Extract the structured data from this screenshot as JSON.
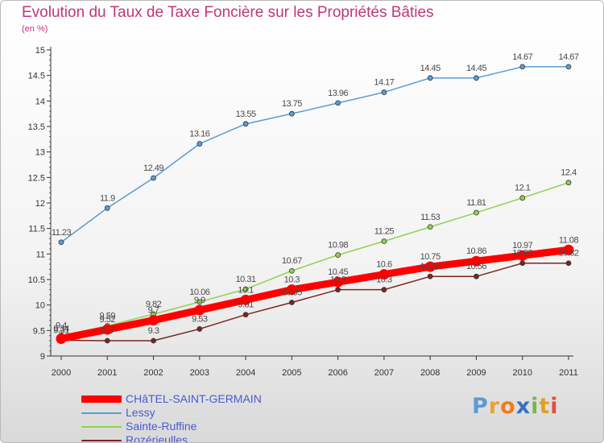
{
  "title": "Evolution du Taux de Taxe Foncière sur les Propriétés Bâties",
  "unit_label": "(en %)",
  "logo": {
    "text": "Proxiti",
    "colors": [
      "#5b9bd5",
      "#f0a030",
      "#f07c1e",
      "#3b6fc4",
      "#7ab648",
      "#e0a020",
      "#e0503a"
    ]
  },
  "chart_data": {
    "type": "line",
    "title": "Evolution du Taux de Taxe Foncière sur les Propriétés Bâties",
    "ylabel": "(en %)",
    "xlabel": "",
    "ylim": [
      9,
      15
    ],
    "yticks": [
      "9",
      "9.5",
      "10",
      "10.5",
      "11",
      "11.5",
      "12",
      "12.5",
      "13",
      "13.5",
      "14",
      "14.5",
      "15"
    ],
    "x": [
      "2000",
      "2001",
      "2002",
      "2003",
      "2004",
      "2005",
      "2006",
      "2007",
      "2008",
      "2009",
      "2010",
      "2011"
    ],
    "grid": false,
    "legend_position": "bottom-left",
    "series": [
      {
        "name": "CHâTEL-SAINT-GERMAIN",
        "color": "#ff0000",
        "values": [
          9.34,
          9.52,
          9.7,
          9.9,
          10.1,
          10.3,
          10.45,
          10.6,
          10.75,
          10.86,
          10.97,
          11.08
        ],
        "labels": [
          "9.34",
          "9.52",
          "9.7",
          "9.9",
          "10.1",
          "10.3",
          "10.45",
          "10.6",
          "10.75",
          "10.86",
          "10.97",
          "11.08"
        ]
      },
      {
        "name": "Lessy",
        "color": "#5b9bd5",
        "values": [
          11.23,
          11.9,
          12.49,
          13.16,
          13.55,
          13.75,
          13.96,
          14.17,
          14.45,
          14.45,
          14.67,
          14.67
        ],
        "labels": [
          "11.23",
          "11.9",
          "12.49",
          "13.16",
          "13.55",
          "13.75",
          "13.96",
          "14.17",
          "14.45",
          "14.45",
          "14.67",
          "14.67"
        ]
      },
      {
        "name": "Sainte-Ruffine",
        "color": "#8fd14f",
        "values": [
          9.4,
          9.59,
          9.82,
          10.06,
          10.31,
          10.67,
          10.98,
          11.25,
          11.53,
          11.81,
          12.1,
          12.4
        ],
        "labels": [
          "9.4",
          "9.59",
          "9.82",
          "10.06",
          "10.31",
          "10.67",
          "10.98",
          "11.25",
          "11.53",
          "11.81",
          "12.1",
          "12.4"
        ]
      },
      {
        "name": "Rozérieulles",
        "color": "#7a2424",
        "values": [
          9.31,
          9.3,
          9.3,
          9.53,
          9.81,
          10.05,
          10.3,
          10.3,
          10.56,
          10.56,
          10.82,
          10.82
        ],
        "labels": [
          "9.31",
          "9.3",
          "9.3",
          "9.53",
          "9.81",
          "10.05",
          "10.3",
          "10.3",
          "10.56",
          "10.56",
          "10.82",
          "10.82"
        ]
      }
    ]
  }
}
